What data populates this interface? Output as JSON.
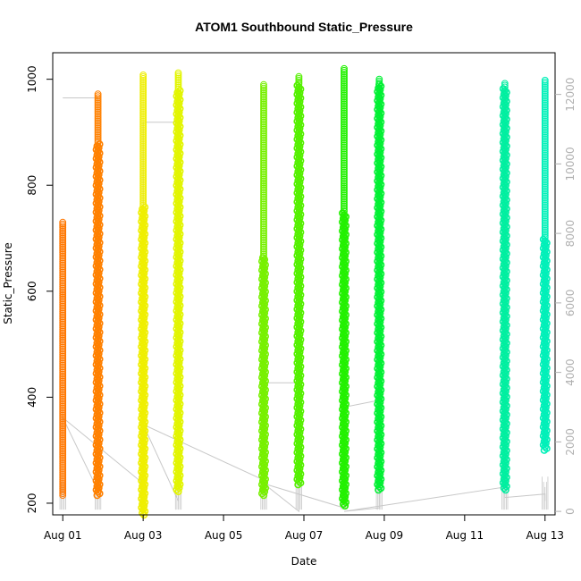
{
  "chart_data": {
    "type": "scatter",
    "title": "ATOM1 Southbound Static_Pressure",
    "xlabel": "Date",
    "ylabel": "Static_Pressure",
    "xlim": [
      "2024-07-31T18:00",
      "2024-08-13T06:00"
    ],
    "ylim": [
      178,
      1050
    ],
    "y2lim": [
      -100,
      13200
    ],
    "grid": false,
    "legend": "none",
    "x_ticks": [
      {
        "date": "2024-08-01T00:00",
        "label": "Aug 01"
      },
      {
        "date": "2024-08-03T00:00",
        "label": "Aug 03"
      },
      {
        "date": "2024-08-05T00:00",
        "label": "Aug 05"
      },
      {
        "date": "2024-08-07T00:00",
        "label": "Aug 07"
      },
      {
        "date": "2024-08-09T00:00",
        "label": "Aug 09"
      },
      {
        "date": "2024-08-11T00:00",
        "label": "Aug 11"
      },
      {
        "date": "2024-08-13T00:00",
        "label": "Aug 13"
      }
    ],
    "y_ticks": [
      200,
      400,
      600,
      800,
      1000
    ],
    "y2_ticks": [
      0,
      2000,
      4000,
      6000,
      8000,
      10000,
      12000
    ],
    "bursts": [
      {
        "date": "2024-08-01T00:00",
        "ymin": 215,
        "ymax": 730,
        "color": "#ff7700",
        "dense": false,
        "sparse_above": 0
      },
      {
        "date": "2024-08-01T21:00",
        "ymin": 215,
        "ymax": 972,
        "color": "#ff8000",
        "dense": true,
        "sparse_above": 880
      },
      {
        "date": "2024-08-03T00:00",
        "ymin": 178,
        "ymax": 1008,
        "color": "#eeee00",
        "dense": true,
        "sparse_above": 760
      },
      {
        "date": "2024-08-03T21:00",
        "ymin": 222,
        "ymax": 1012,
        "color": "#e2f500",
        "dense": true,
        "sparse_above": 980
      },
      {
        "date": "2024-08-06T00:00",
        "ymin": 215,
        "ymax": 990,
        "color": "#77f000",
        "dense": true,
        "sparse_above": 665
      },
      {
        "date": "2024-08-06T21:00",
        "ymin": 235,
        "ymax": 1005,
        "color": "#55f000",
        "dense": true,
        "sparse_above": 990
      },
      {
        "date": "2024-08-08T00:00",
        "ymin": 195,
        "ymax": 1020,
        "color": "#22f000",
        "dense": true,
        "sparse_above": 750
      },
      {
        "date": "2024-08-08T21:00",
        "ymin": 225,
        "ymax": 1000,
        "color": "#00f033",
        "dense": true,
        "sparse_above": 990
      },
      {
        "date": "2024-08-12T00:00",
        "ymin": 225,
        "ymax": 992,
        "color": "#00eea0",
        "dense": true,
        "sparse_above": 985
      },
      {
        "date": "2024-08-13T00:00",
        "ymin": 300,
        "ymax": 998,
        "color": "#00f0b8",
        "dense": true,
        "sparse_above": 700
      }
    ],
    "gray_series": [
      {
        "date": "2024-08-01T00:00",
        "y": 11900
      },
      {
        "date": "2024-08-01T21:00",
        "y": 11900
      },
      {
        "date": "2024-08-01T21:00",
        "y": 600
      },
      {
        "date": "2024-08-01T00:00",
        "y": 2700
      },
      {
        "date": "2024-08-03T00:00",
        "y": 800
      },
      {
        "date": "2024-08-03T00:00",
        "y": 11200
      },
      {
        "date": "2024-08-03T21:00",
        "y": 11200
      },
      {
        "date": "2024-08-03T21:00",
        "y": 300
      },
      {
        "date": "2024-08-03T00:00",
        "y": 2500
      },
      {
        "date": "2024-08-06T00:00",
        "y": 900
      },
      {
        "date": "2024-08-06T00:00",
        "y": 3700
      },
      {
        "date": "2024-08-06T21:00",
        "y": 3700
      },
      {
        "date": "2024-08-06T21:00",
        "y": 0
      },
      {
        "date": "2024-08-06T00:00",
        "y": 800
      },
      {
        "date": "2024-08-08T00:00",
        "y": 100
      },
      {
        "date": "2024-08-08T00:00",
        "y": 3000
      },
      {
        "date": "2024-08-08T21:00",
        "y": 3200
      },
      {
        "date": "2024-08-08T21:00",
        "y": 100
      },
      {
        "date": "2024-08-08T00:00",
        "y": 0
      },
      {
        "date": "2024-08-12T00:00",
        "y": 700
      },
      {
        "date": "2024-08-12T00:00",
        "y": 400
      },
      {
        "date": "2024-08-13T00:00",
        "y": 500
      },
      {
        "date": "2024-08-13T00:00",
        "y": 300
      }
    ]
  }
}
